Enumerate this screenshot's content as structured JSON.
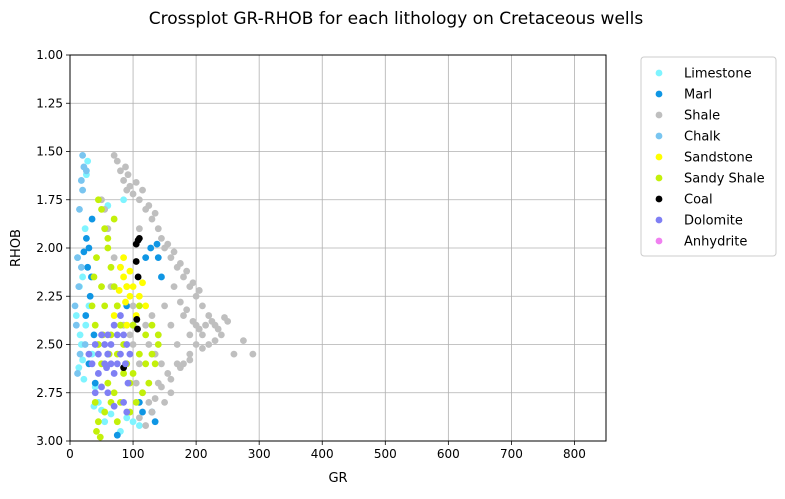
{
  "chart_data": {
    "type": "scatter",
    "title": "Crossplot GR-RHOB for each lithology on Cretaceous wells",
    "xlabel": "GR",
    "ylabel": "RHOB",
    "xlim": [
      0,
      850
    ],
    "ylim": [
      3.0,
      1.0
    ],
    "y_inverted": true,
    "xticks": [
      0,
      100,
      200,
      300,
      400,
      500,
      600,
      700,
      800
    ],
    "yticks": [
      1.0,
      1.25,
      1.5,
      1.75,
      2.0,
      2.25,
      2.5,
      2.75,
      3.0
    ],
    "ytick_labels": [
      "1.00",
      "1.25",
      "1.50",
      "1.75",
      "2.00",
      "2.25",
      "2.50",
      "2.75",
      "3.00"
    ],
    "grid": true,
    "legend_position": "outside-right-top",
    "series": [
      {
        "name": "Limestone",
        "color": "#7ff4ff",
        "points": [
          [
            12,
            2.05
          ],
          [
            15,
            2.2
          ],
          [
            10,
            2.35
          ],
          [
            18,
            2.5
          ],
          [
            14,
            2.62
          ],
          [
            20,
            2.15
          ],
          [
            25,
            2.4
          ],
          [
            22,
            2.68
          ],
          [
            30,
            2.3
          ],
          [
            28,
            1.55
          ],
          [
            26,
            1.62
          ],
          [
            24,
            1.9
          ],
          [
            35,
            2.55
          ],
          [
            40,
            2.72
          ],
          [
            45,
            2.8
          ],
          [
            55,
            2.9
          ],
          [
            65,
            2.86
          ],
          [
            80,
            2.95
          ],
          [
            60,
            1.78
          ],
          [
            85,
            1.75
          ],
          [
            90,
            2.88
          ],
          [
            100,
            2.9
          ],
          [
            110,
            2.92
          ],
          [
            16,
            2.45
          ],
          [
            20,
            2.58
          ],
          [
            38,
            2.82
          ],
          [
            50,
            2.84
          ]
        ]
      },
      {
        "name": "Marl",
        "color": "#0f96e4",
        "points": [
          [
            35,
            1.85
          ],
          [
            30,
            2.0
          ],
          [
            28,
            2.1
          ],
          [
            32,
            2.25
          ],
          [
            25,
            2.35
          ],
          [
            38,
            2.45
          ],
          [
            30,
            2.6
          ],
          [
            40,
            2.7
          ],
          [
            120,
            2.05
          ],
          [
            140,
            2.05
          ],
          [
            145,
            2.15
          ],
          [
            130,
            2.85
          ],
          [
            115,
            2.85
          ],
          [
            75,
            2.97
          ],
          [
            135,
            2.9
          ],
          [
            110,
            2.8
          ],
          [
            100,
            2.4
          ],
          [
            60,
            2.55
          ],
          [
            90,
            2.3
          ],
          [
            22,
            2.02
          ],
          [
            26,
            1.95
          ],
          [
            34,
            2.15
          ],
          [
            128,
            2.0
          ],
          [
            138,
            1.98
          ]
        ]
      },
      {
        "name": "Shale",
        "color": "#bfbfbf",
        "points": [
          [
            70,
            1.52
          ],
          [
            75,
            1.55
          ],
          [
            80,
            1.6
          ],
          [
            85,
            1.65
          ],
          [
            90,
            1.7
          ],
          [
            95,
            1.68
          ],
          [
            100,
            1.72
          ],
          [
            110,
            1.75
          ],
          [
            120,
            1.8
          ],
          [
            130,
            1.85
          ],
          [
            140,
            1.9
          ],
          [
            150,
            2.0
          ],
          [
            160,
            2.05
          ],
          [
            170,
            2.1
          ],
          [
            180,
            2.15
          ],
          [
            190,
            2.2
          ],
          [
            200,
            2.25
          ],
          [
            210,
            2.3
          ],
          [
            220,
            2.35
          ],
          [
            230,
            2.4
          ],
          [
            240,
            2.45
          ],
          [
            250,
            2.38
          ],
          [
            260,
            2.55
          ],
          [
            275,
            2.48
          ],
          [
            290,
            2.55
          ],
          [
            150,
            2.3
          ],
          [
            160,
            2.4
          ],
          [
            170,
            2.5
          ],
          [
            180,
            2.6
          ],
          [
            190,
            2.55
          ],
          [
            200,
            2.5
          ],
          [
            170,
            2.6
          ],
          [
            160,
            2.75
          ],
          [
            140,
            2.7
          ],
          [
            150,
            2.8
          ],
          [
            130,
            2.85
          ],
          [
            120,
            2.92
          ],
          [
            110,
            2.88
          ],
          [
            100,
            2.5
          ],
          [
            110,
            2.6
          ],
          [
            120,
            2.4
          ],
          [
            90,
            2.2
          ],
          [
            80,
            2.1
          ],
          [
            70,
            2.05
          ],
          [
            60,
            1.9
          ],
          [
            55,
            1.8
          ],
          [
            50,
            1.75
          ],
          [
            110,
            1.9
          ],
          [
            100,
            2.3
          ],
          [
            130,
            2.35
          ],
          [
            140,
            2.45
          ],
          [
            200,
            2.4
          ],
          [
            210,
            2.45
          ],
          [
            220,
            2.5
          ],
          [
            180,
            2.35
          ],
          [
            190,
            2.45
          ],
          [
            155,
            2.65
          ],
          [
            145,
            2.6
          ],
          [
            135,
            2.55
          ],
          [
            125,
            2.5
          ],
          [
            165,
            2.2
          ],
          [
            175,
            2.28
          ],
          [
            185,
            2.32
          ],
          [
            195,
            2.38
          ],
          [
            205,
            2.42
          ],
          [
            215,
            2.4
          ],
          [
            225,
            2.38
          ],
          [
            235,
            2.42
          ],
          [
            245,
            2.36
          ],
          [
            88,
            1.58
          ],
          [
            92,
            1.62
          ],
          [
            105,
            1.66
          ],
          [
            115,
            1.7
          ],
          [
            125,
            1.78
          ],
          [
            135,
            1.82
          ],
          [
            145,
            1.95
          ],
          [
            155,
            1.98
          ],
          [
            165,
            2.02
          ],
          [
            175,
            2.08
          ],
          [
            185,
            2.12
          ],
          [
            195,
            2.18
          ],
          [
            205,
            2.22
          ],
          [
            65,
            2.2
          ],
          [
            75,
            2.3
          ],
          [
            85,
            2.4
          ],
          [
            95,
            2.45
          ],
          [
            105,
            2.7
          ],
          [
            115,
            2.75
          ],
          [
            125,
            2.8
          ],
          [
            135,
            2.78
          ],
          [
            145,
            2.72
          ],
          [
            160,
            2.68
          ],
          [
            175,
            2.62
          ],
          [
            190,
            2.58
          ],
          [
            210,
            2.52
          ],
          [
            230,
            2.48
          ]
        ]
      },
      {
        "name": "Chalk",
        "color": "#79c5f0",
        "points": [
          [
            20,
            1.52
          ],
          [
            22,
            1.58
          ],
          [
            18,
            1.65
          ],
          [
            15,
            1.8
          ],
          [
            12,
            2.05
          ],
          [
            14,
            2.2
          ],
          [
            10,
            2.4
          ],
          [
            16,
            2.55
          ],
          [
            12,
            2.65
          ],
          [
            8,
            2.3
          ],
          [
            24,
            2.5
          ],
          [
            18,
            2.1
          ],
          [
            20,
            1.7
          ],
          [
            26,
            1.6
          ]
        ]
      },
      {
        "name": "Sandstone",
        "color": "#ffff00",
        "points": [
          [
            80,
            2.1
          ],
          [
            85,
            2.15
          ],
          [
            90,
            2.2
          ],
          [
            95,
            2.25
          ],
          [
            75,
            2.3
          ],
          [
            100,
            2.2
          ],
          [
            110,
            2.25
          ],
          [
            120,
            2.3
          ],
          [
            105,
            2.35
          ],
          [
            90,
            2.4
          ],
          [
            70,
            2.35
          ],
          [
            85,
            2.05
          ],
          [
            95,
            2.12
          ],
          [
            115,
            2.18
          ],
          [
            78,
            2.22
          ],
          [
            88,
            2.28
          ]
        ]
      },
      {
        "name": "Sandy Shale",
        "color": "#c3f00a",
        "points": [
          [
            45,
            1.75
          ],
          [
            50,
            1.8
          ],
          [
            55,
            1.9
          ],
          [
            60,
            2.0
          ],
          [
            65,
            2.1
          ],
          [
            70,
            2.2
          ],
          [
            75,
            2.3
          ],
          [
            80,
            2.4
          ],
          [
            85,
            2.5
          ],
          [
            90,
            2.6
          ],
          [
            95,
            2.7
          ],
          [
            100,
            2.65
          ],
          [
            110,
            2.55
          ],
          [
            120,
            2.45
          ],
          [
            130,
            2.4
          ],
          [
            140,
            2.5
          ],
          [
            135,
            2.6
          ],
          [
            125,
            2.7
          ],
          [
            115,
            2.75
          ],
          [
            105,
            2.8
          ],
          [
            95,
            2.85
          ],
          [
            80,
            2.8
          ],
          [
            70,
            2.75
          ],
          [
            60,
            2.7
          ],
          [
            50,
            2.6
          ],
          [
            45,
            2.5
          ],
          [
            40,
            2.4
          ],
          [
            35,
            2.3
          ],
          [
            40,
            2.8
          ],
          [
            45,
            2.9
          ],
          [
            42,
            2.95
          ],
          [
            48,
            2.98
          ],
          [
            55,
            2.85
          ],
          [
            65,
            2.8
          ],
          [
            75,
            2.9
          ],
          [
            60,
            1.95
          ],
          [
            70,
            1.85
          ],
          [
            50,
            2.2
          ],
          [
            55,
            2.3
          ],
          [
            65,
            2.45
          ],
          [
            75,
            2.55
          ],
          [
            85,
            2.65
          ],
          [
            100,
            2.4
          ],
          [
            110,
            2.3
          ],
          [
            120,
            2.6
          ],
          [
            130,
            2.55
          ],
          [
            140,
            2.45
          ],
          [
            38,
            2.15
          ],
          [
            42,
            2.05
          ],
          [
            52,
            2.45
          ],
          [
            62,
            2.55
          ]
        ]
      },
      {
        "name": "Coal",
        "color": "#000000",
        "points": [
          [
            105,
            1.98
          ],
          [
            108,
            1.96
          ],
          [
            110,
            1.95
          ],
          [
            105,
            2.07
          ],
          [
            108,
            2.15
          ],
          [
            106,
            2.37
          ],
          [
            107,
            2.42
          ],
          [
            85,
            2.62
          ]
        ]
      },
      {
        "name": "Dolomite",
        "color": "#7f7ff4",
        "points": [
          [
            30,
            2.55
          ],
          [
            35,
            2.6
          ],
          [
            40,
            2.5
          ],
          [
            45,
            2.55
          ],
          [
            50,
            2.45
          ],
          [
            55,
            2.5
          ],
          [
            60,
            2.55
          ],
          [
            65,
            2.6
          ],
          [
            70,
            2.65
          ],
          [
            75,
            2.6
          ],
          [
            80,
            2.55
          ],
          [
            85,
            2.45
          ],
          [
            90,
            2.5
          ],
          [
            95,
            2.55
          ],
          [
            80,
            2.35
          ],
          [
            70,
            2.4
          ],
          [
            60,
            2.45
          ],
          [
            55,
            2.6
          ],
          [
            45,
            2.65
          ],
          [
            40,
            2.75
          ],
          [
            60,
            2.75
          ],
          [
            85,
            2.8
          ],
          [
            90,
            2.85
          ],
          [
            70,
            2.82
          ],
          [
            50,
            2.72
          ],
          [
            65,
            2.5
          ],
          [
            75,
            2.45
          ],
          [
            88,
            2.6
          ],
          [
            92,
            2.7
          ],
          [
            58,
            2.62
          ]
        ]
      },
      {
        "name": "Anhydrite",
        "color": "#f080f0",
        "points": []
      }
    ]
  }
}
